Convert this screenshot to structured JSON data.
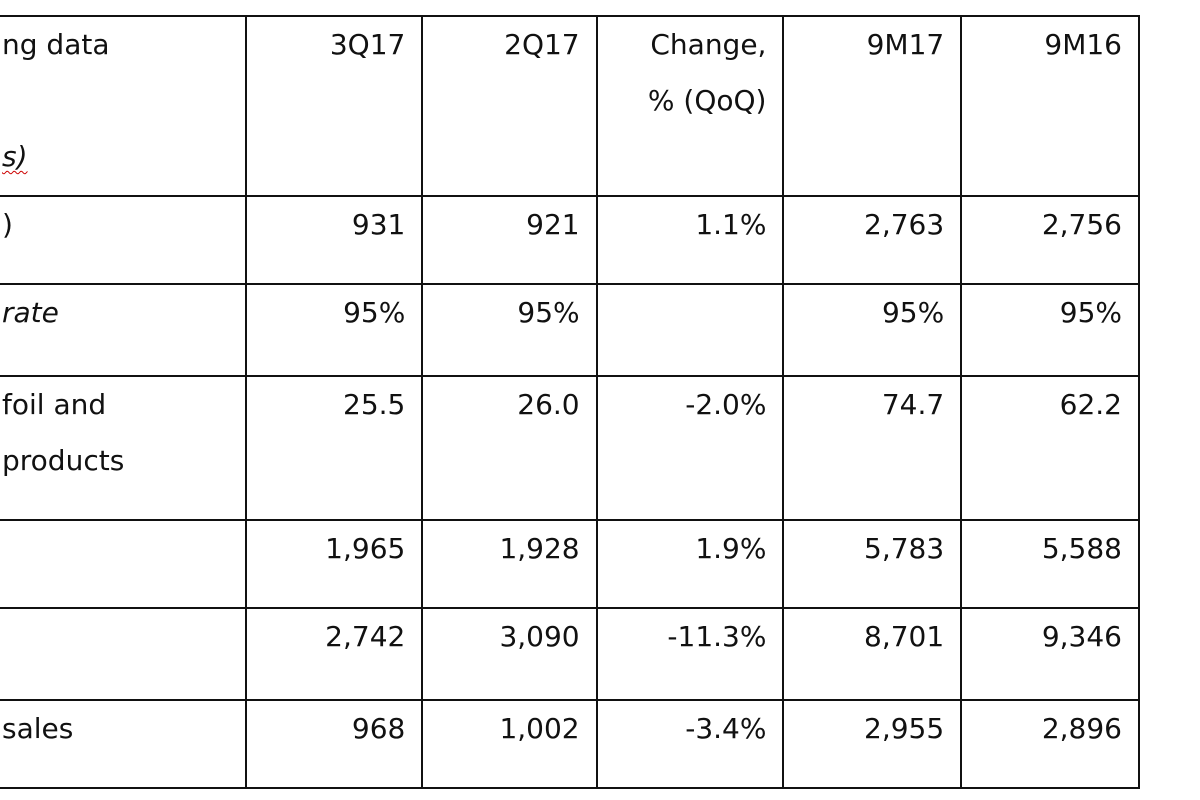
{
  "header": {
    "label_lines": [
      "ng data",
      "",
      "s)"
    ],
    "cols": [
      {
        "lines": [
          "3Q17"
        ]
      },
      {
        "lines": [
          "2Q17"
        ]
      },
      {
        "lines": [
          "Change,",
          "% (QoQ)"
        ]
      },
      {
        "lines": [
          "9M17"
        ]
      },
      {
        "lines": [
          "9M16"
        ]
      }
    ]
  },
  "rows": [
    {
      "label_lines": [
        ")"
      ],
      "italic": false,
      "values": [
        "931",
        "921",
        "1.1%",
        "2,763",
        "2,756"
      ]
    },
    {
      "label_lines": [
        "rate"
      ],
      "italic": true,
      "values": [
        "95%",
        "95%",
        "",
        "95%",
        "95%"
      ]
    },
    {
      "label_lines": [
        " foil and",
        "products"
      ],
      "italic": false,
      "values": [
        "25.5",
        "26.0",
        "-2.0%",
        "74.7",
        "62.2"
      ]
    },
    {
      "label_lines": [
        ""
      ],
      "italic": false,
      "values": [
        "1,965",
        "1,928",
        "1.9%",
        "5,783",
        "5,588"
      ]
    },
    {
      "label_lines": [
        ""
      ],
      "italic": false,
      "values": [
        "2,742",
        "3,090",
        "-11.3%",
        "8,701",
        "9,346"
      ]
    },
    {
      "label_lines": [
        "sales"
      ],
      "italic": false,
      "values": [
        "968",
        "1,002",
        "-3.4%",
        "2,955",
        "2,896"
      ]
    }
  ]
}
